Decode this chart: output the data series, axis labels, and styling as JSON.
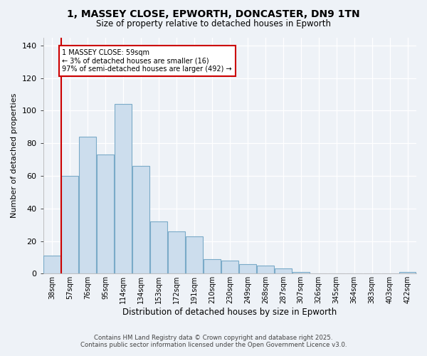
{
  "title_line1": "1, MASSEY CLOSE, EPWORTH, DONCASTER, DN9 1TN",
  "title_line2": "Size of property relative to detached houses in Epworth",
  "xlabel": "Distribution of detached houses by size in Epworth",
  "ylabel": "Number of detached properties",
  "categories": [
    "38sqm",
    "57sqm",
    "76sqm",
    "95sqm",
    "114sqm",
    "134sqm",
    "153sqm",
    "172sqm",
    "191sqm",
    "210sqm",
    "230sqm",
    "249sqm",
    "268sqm",
    "287sqm",
    "307sqm",
    "326sqm",
    "345sqm",
    "364sqm",
    "383sqm",
    "403sqm",
    "422sqm"
  ],
  "values": [
    11,
    60,
    84,
    73,
    104,
    66,
    32,
    26,
    23,
    9,
    8,
    6,
    5,
    3,
    1,
    0,
    0,
    0,
    0,
    0,
    1
  ],
  "bar_color": "#ccdded",
  "bar_edge_color": "#7aaac8",
  "vline_color": "#cc0000",
  "vline_pos": 1,
  "annotation_text": "1 MASSEY CLOSE: 59sqm\n← 3% of detached houses are smaller (16)\n97% of semi-detached houses are larger (492) →",
  "annotation_box_color": "#ffffff",
  "annotation_box_edge": "#cc0000",
  "ylim": [
    0,
    145
  ],
  "yticks": [
    0,
    20,
    40,
    60,
    80,
    100,
    120,
    140
  ],
  "background_color": "#eef2f7",
  "grid_color": "#ffffff",
  "footer_line1": "Contains HM Land Registry data © Crown copyright and database right 2025.",
  "footer_line2": "Contains public sector information licensed under the Open Government Licence v3.0."
}
